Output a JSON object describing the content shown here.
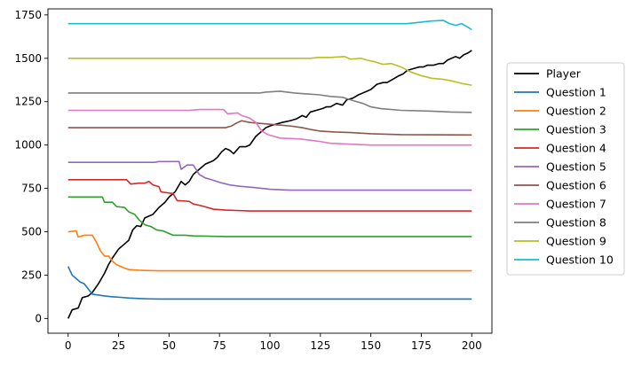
{
  "chart_data": {
    "type": "line",
    "title": "",
    "xlabel": "",
    "ylabel": "",
    "xlim": [
      -10,
      210
    ],
    "ylim": [
      -85,
      1785
    ],
    "x_ticks": [
      0,
      25,
      50,
      75,
      100,
      125,
      150,
      175,
      200
    ],
    "y_ticks": [
      0,
      250,
      500,
      750,
      1000,
      1250,
      1500,
      1750
    ],
    "grid": false,
    "legend_position": "right",
    "series": [
      {
        "name": "Player",
        "color": "#000000",
        "points": [
          [
            0,
            0
          ],
          [
            2,
            50
          ],
          [
            5,
            60
          ],
          [
            7,
            120
          ],
          [
            10,
            130
          ],
          [
            12,
            150
          ],
          [
            15,
            200
          ],
          [
            18,
            260
          ],
          [
            20,
            310
          ],
          [
            22,
            350
          ],
          [
            25,
            400
          ],
          [
            28,
            430
          ],
          [
            30,
            450
          ],
          [
            32,
            510
          ],
          [
            34,
            535
          ],
          [
            36,
            530
          ],
          [
            38,
            580
          ],
          [
            40,
            590
          ],
          [
            42,
            600
          ],
          [
            45,
            640
          ],
          [
            48,
            670
          ],
          [
            50,
            700
          ],
          [
            53,
            730
          ],
          [
            56,
            790
          ],
          [
            58,
            770
          ],
          [
            60,
            790
          ],
          [
            62,
            830
          ],
          [
            65,
            860
          ],
          [
            68,
            890
          ],
          [
            70,
            900
          ],
          [
            72,
            910
          ],
          [
            74,
            930
          ],
          [
            76,
            960
          ],
          [
            78,
            980
          ],
          [
            80,
            970
          ],
          [
            82,
            950
          ],
          [
            85,
            990
          ],
          [
            88,
            990
          ],
          [
            90,
            1000
          ],
          [
            93,
            1050
          ],
          [
            96,
            1080
          ],
          [
            98,
            1100
          ],
          [
            100,
            1110
          ],
          [
            103,
            1120
          ],
          [
            106,
            1130
          ],
          [
            110,
            1140
          ],
          [
            113,
            1150
          ],
          [
            116,
            1170
          ],
          [
            118,
            1160
          ],
          [
            120,
            1190
          ],
          [
            123,
            1200
          ],
          [
            126,
            1210
          ],
          [
            128,
            1220
          ],
          [
            130,
            1220
          ],
          [
            133,
            1240
          ],
          [
            136,
            1230
          ],
          [
            138,
            1260
          ],
          [
            141,
            1270
          ],
          [
            144,
            1290
          ],
          [
            146,
            1300
          ],
          [
            148,
            1310
          ],
          [
            150,
            1320
          ],
          [
            153,
            1350
          ],
          [
            156,
            1360
          ],
          [
            158,
            1360
          ],
          [
            161,
            1380
          ],
          [
            164,
            1400
          ],
          [
            166,
            1410
          ],
          [
            168,
            1430
          ],
          [
            171,
            1440
          ],
          [
            174,
            1450
          ],
          [
            176,
            1450
          ],
          [
            178,
            1460
          ],
          [
            181,
            1460
          ],
          [
            184,
            1470
          ],
          [
            186,
            1470
          ],
          [
            188,
            1490
          ],
          [
            190,
            1500
          ],
          [
            192,
            1510
          ],
          [
            194,
            1500
          ],
          [
            196,
            1520
          ],
          [
            198,
            1530
          ],
          [
            200,
            1545
          ]
        ]
      },
      {
        "name": "Question 1",
        "color": "#1f77b4",
        "points": [
          [
            0,
            300
          ],
          [
            2,
            250
          ],
          [
            4,
            230
          ],
          [
            6,
            210
          ],
          [
            8,
            200
          ],
          [
            10,
            170
          ],
          [
            12,
            140
          ],
          [
            15,
            135
          ],
          [
            18,
            130
          ],
          [
            22,
            125
          ],
          [
            26,
            122
          ],
          [
            30,
            118
          ],
          [
            35,
            115
          ],
          [
            40,
            113
          ],
          [
            45,
            112
          ],
          [
            60,
            112
          ],
          [
            100,
            112
          ],
          [
            150,
            112
          ],
          [
            200,
            112
          ]
        ]
      },
      {
        "name": "Question 2",
        "color": "#ff7f0e",
        "points": [
          [
            0,
            500
          ],
          [
            4,
            505
          ],
          [
            5,
            470
          ],
          [
            8,
            480
          ],
          [
            12,
            480
          ],
          [
            14,
            440
          ],
          [
            16,
            390
          ],
          [
            18,
            360
          ],
          [
            20,
            360
          ],
          [
            22,
            330
          ],
          [
            24,
            310
          ],
          [
            26,
            300
          ],
          [
            28,
            290
          ],
          [
            30,
            282
          ],
          [
            35,
            278
          ],
          [
            40,
            276
          ],
          [
            45,
            275
          ],
          [
            60,
            275
          ],
          [
            100,
            275
          ],
          [
            150,
            275
          ],
          [
            200,
            275
          ]
        ]
      },
      {
        "name": "Question 3",
        "color": "#2ca02c",
        "points": [
          [
            0,
            700
          ],
          [
            17,
            700
          ],
          [
            18,
            670
          ],
          [
            22,
            670
          ],
          [
            24,
            645
          ],
          [
            28,
            640
          ],
          [
            30,
            615
          ],
          [
            33,
            600
          ],
          [
            35,
            570
          ],
          [
            38,
            540
          ],
          [
            41,
            530
          ],
          [
            44,
            510
          ],
          [
            47,
            505
          ],
          [
            50,
            490
          ],
          [
            52,
            480
          ],
          [
            58,
            480
          ],
          [
            62,
            476
          ],
          [
            70,
            474
          ],
          [
            80,
            472
          ],
          [
            100,
            472
          ],
          [
            150,
            472
          ],
          [
            200,
            472
          ]
        ]
      },
      {
        "name": "Question 4",
        "color": "#d62728",
        "points": [
          [
            0,
            800
          ],
          [
            29,
            800
          ],
          [
            31,
            775
          ],
          [
            35,
            780
          ],
          [
            38,
            780
          ],
          [
            40,
            790
          ],
          [
            42,
            770
          ],
          [
            45,
            760
          ],
          [
            46,
            730
          ],
          [
            52,
            720
          ],
          [
            54,
            680
          ],
          [
            60,
            675
          ],
          [
            62,
            660
          ],
          [
            66,
            650
          ],
          [
            69,
            640
          ],
          [
            72,
            630
          ],
          [
            78,
            625
          ],
          [
            85,
            622
          ],
          [
            90,
            620
          ],
          [
            100,
            620
          ],
          [
            150,
            620
          ],
          [
            200,
            620
          ]
        ]
      },
      {
        "name": "Question 5",
        "color": "#9467bd",
        "points": [
          [
            0,
            900
          ],
          [
            43,
            900
          ],
          [
            45,
            905
          ],
          [
            55,
            905
          ],
          [
            56,
            860
          ],
          [
            59,
            885
          ],
          [
            62,
            885
          ],
          [
            65,
            830
          ],
          [
            68,
            810
          ],
          [
            71,
            800
          ],
          [
            75,
            785
          ],
          [
            80,
            770
          ],
          [
            85,
            762
          ],
          [
            92,
            755
          ],
          [
            100,
            745
          ],
          [
            110,
            740
          ],
          [
            130,
            740
          ],
          [
            150,
            740
          ],
          [
            200,
            740
          ]
        ]
      },
      {
        "name": "Question 6",
        "color": "#8c564b",
        "points": [
          [
            0,
            1100
          ],
          [
            50,
            1100
          ],
          [
            78,
            1100
          ],
          [
            81,
            1110
          ],
          [
            84,
            1130
          ],
          [
            86,
            1140
          ],
          [
            90,
            1130
          ],
          [
            100,
            1120
          ],
          [
            110,
            1110
          ],
          [
            116,
            1100
          ],
          [
            120,
            1090
          ],
          [
            125,
            1080
          ],
          [
            132,
            1075
          ],
          [
            140,
            1072
          ],
          [
            150,
            1065
          ],
          [
            165,
            1060
          ],
          [
            200,
            1058
          ]
        ]
      },
      {
        "name": "Question 7",
        "color": "#e377c2",
        "points": [
          [
            0,
            1200
          ],
          [
            60,
            1200
          ],
          [
            65,
            1205
          ],
          [
            77,
            1205
          ],
          [
            79,
            1180
          ],
          [
            84,
            1185
          ],
          [
            86,
            1170
          ],
          [
            90,
            1155
          ],
          [
            93,
            1130
          ],
          [
            96,
            1080
          ],
          [
            99,
            1060
          ],
          [
            102,
            1050
          ],
          [
            105,
            1040
          ],
          [
            115,
            1035
          ],
          [
            125,
            1020
          ],
          [
            130,
            1010
          ],
          [
            140,
            1005
          ],
          [
            150,
            1000
          ],
          [
            200,
            1000
          ]
        ]
      },
      {
        "name": "Question 8",
        "color": "#7f7f7f",
        "points": [
          [
            0,
            1300
          ],
          [
            95,
            1300
          ],
          [
            98,
            1305
          ],
          [
            105,
            1310
          ],
          [
            112,
            1300
          ],
          [
            118,
            1295
          ],
          [
            124,
            1290
          ],
          [
            130,
            1280
          ],
          [
            136,
            1275
          ],
          [
            140,
            1260
          ],
          [
            146,
            1240
          ],
          [
            150,
            1220
          ],
          [
            155,
            1210
          ],
          [
            165,
            1200
          ],
          [
            180,
            1195
          ],
          [
            190,
            1190
          ],
          [
            200,
            1188
          ]
        ]
      },
      {
        "name": "Question 9",
        "color": "#bcbd22",
        "points": [
          [
            0,
            1500
          ],
          [
            120,
            1500
          ],
          [
            124,
            1505
          ],
          [
            130,
            1505
          ],
          [
            137,
            1510
          ],
          [
            140,
            1495
          ],
          [
            145,
            1500
          ],
          [
            148,
            1490
          ],
          [
            152,
            1480
          ],
          [
            156,
            1465
          ],
          [
            160,
            1470
          ],
          [
            165,
            1450
          ],
          [
            170,
            1420
          ],
          [
            175,
            1400
          ],
          [
            180,
            1385
          ],
          [
            185,
            1380
          ],
          [
            190,
            1370
          ],
          [
            195,
            1355
          ],
          [
            200,
            1345
          ]
        ]
      },
      {
        "name": "Question 10",
        "color": "#17becf",
        "points": [
          [
            0,
            1700
          ],
          [
            100,
            1700
          ],
          [
            150,
            1700
          ],
          [
            168,
            1700
          ],
          [
            172,
            1705
          ],
          [
            176,
            1710
          ],
          [
            180,
            1715
          ],
          [
            186,
            1718
          ],
          [
            189,
            1700
          ],
          [
            192,
            1690
          ],
          [
            195,
            1700
          ],
          [
            198,
            1680
          ],
          [
            200,
            1665
          ]
        ]
      }
    ]
  }
}
